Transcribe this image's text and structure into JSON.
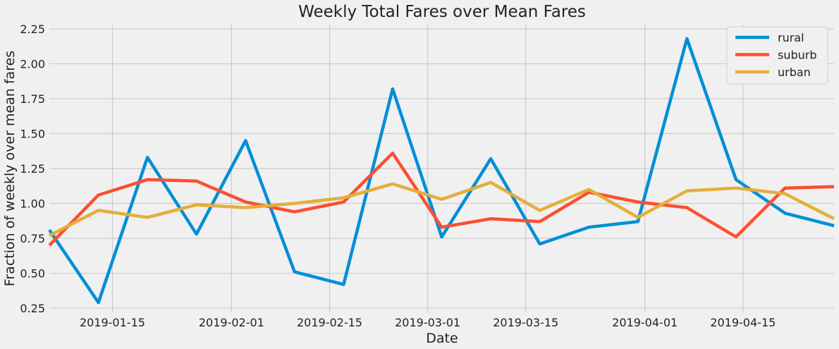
{
  "chart_data": {
    "type": "line",
    "title": "Weekly Total Fares over Mean Fares",
    "xlabel": "Date",
    "ylabel": "Fraction of weekly over mean fares",
    "xlim": [
      "2019-01-06",
      "2019-04-28"
    ],
    "ylim": [
      0.22,
      2.28
    ],
    "x_ticks": [
      "2019-01-15",
      "2019-02-01",
      "2019-02-15",
      "2019-03-01",
      "2019-03-15",
      "2019-04-01",
      "2019-04-15"
    ],
    "y_ticks": [
      "0.25",
      "0.50",
      "0.75",
      "1.00",
      "1.25",
      "1.50",
      "1.75",
      "2.00",
      "2.25"
    ],
    "grid": true,
    "legend_position": "top-right",
    "x": [
      "2019-01-06",
      "2019-01-13",
      "2019-01-20",
      "2019-01-27",
      "2019-02-03",
      "2019-02-10",
      "2019-02-17",
      "2019-02-24",
      "2019-03-03",
      "2019-03-10",
      "2019-03-17",
      "2019-03-24",
      "2019-03-31",
      "2019-04-07",
      "2019-04-14",
      "2019-04-21",
      "2019-04-28"
    ],
    "series": [
      {
        "name": "rural",
        "color": "#008fd5",
        "values": [
          0.81,
          0.29,
          1.33,
          0.78,
          1.45,
          0.51,
          0.42,
          1.82,
          0.76,
          1.32,
          0.71,
          0.83,
          0.87,
          2.18,
          1.17,
          0.93,
          0.84
        ]
      },
      {
        "name": "suburb",
        "color": "#fc4f30",
        "values": [
          0.7,
          1.06,
          1.17,
          1.16,
          1.01,
          0.94,
          1.01,
          1.36,
          0.83,
          0.89,
          0.87,
          1.08,
          1.01,
          0.97,
          0.76,
          1.11,
          1.12
        ]
      },
      {
        "name": "urban",
        "color": "#e5ae38",
        "values": [
          0.77,
          0.95,
          0.9,
          0.99,
          0.97,
          1.0,
          1.04,
          1.14,
          1.03,
          1.15,
          0.95,
          1.1,
          0.9,
          1.09,
          1.11,
          1.07,
          0.89
        ]
      }
    ]
  }
}
